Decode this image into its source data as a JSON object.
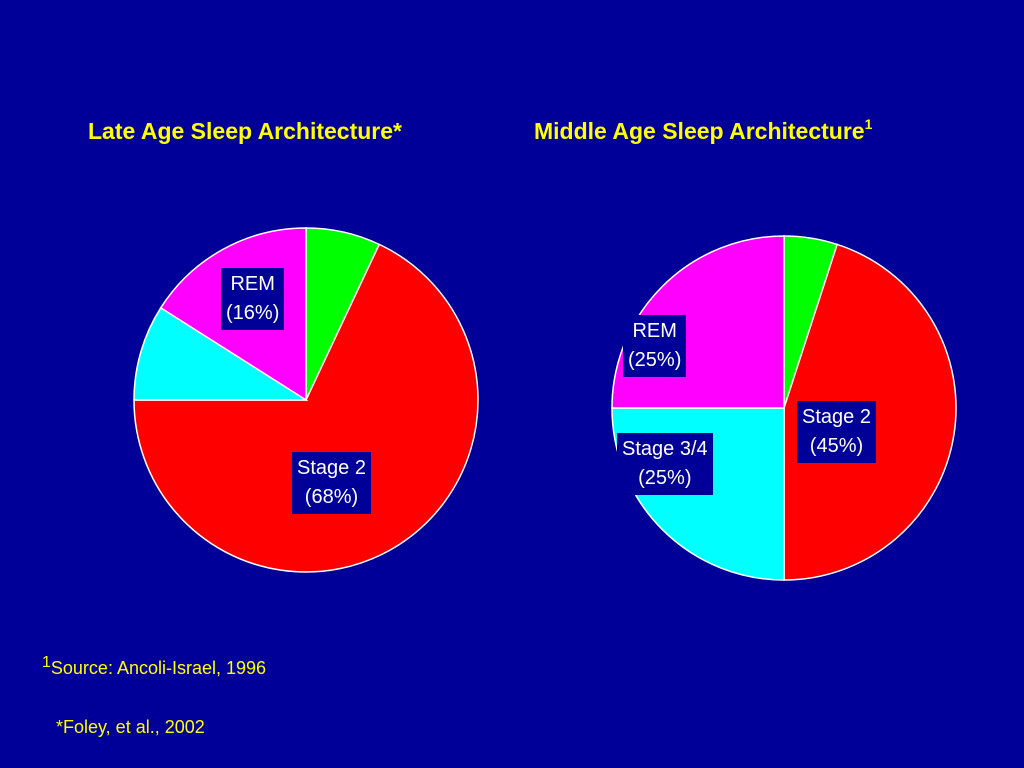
{
  "chart_data": [
    {
      "type": "pie",
      "title": "Late Age Sleep Architecture*",
      "slices": [
        {
          "label": "",
          "value": 7,
          "color": "#00FF00"
        },
        {
          "label": "Stage 2",
          "value": 68,
          "pct_text": "(68%)",
          "color": "#FF0000"
        },
        {
          "label": "",
          "value": 9,
          "color": "#00FFFF"
        },
        {
          "label": "REM",
          "value": 16,
          "pct_text": "(16%)",
          "color": "#FF00FF"
        }
      ]
    },
    {
      "type": "pie",
      "title": "Middle Age Sleep Architecture",
      "title_superscript": "1",
      "slices": [
        {
          "label": "",
          "value": 5,
          "color": "#00FF00"
        },
        {
          "label": "Stage 2",
          "value": 45,
          "pct_text": "(45%)",
          "color": "#FF0000"
        },
        {
          "label": "Stage 3/4",
          "value": 25,
          "pct_text": "(25%)",
          "color": "#00FFFF"
        },
        {
          "label": "REM",
          "value": 25,
          "pct_text": "(25%)",
          "color": "#FF00FF"
        }
      ]
    }
  ],
  "footnotes": {
    "source_mark": "1",
    "source_text": "Source: Ancoli-Israel, 1996",
    "foley_text": "*Foley, et al., 2002"
  },
  "colors": {
    "background": "#000099",
    "title": "#FFFF00",
    "label_text": "#FFFFFF",
    "slice_border": "#FFFFFF"
  }
}
